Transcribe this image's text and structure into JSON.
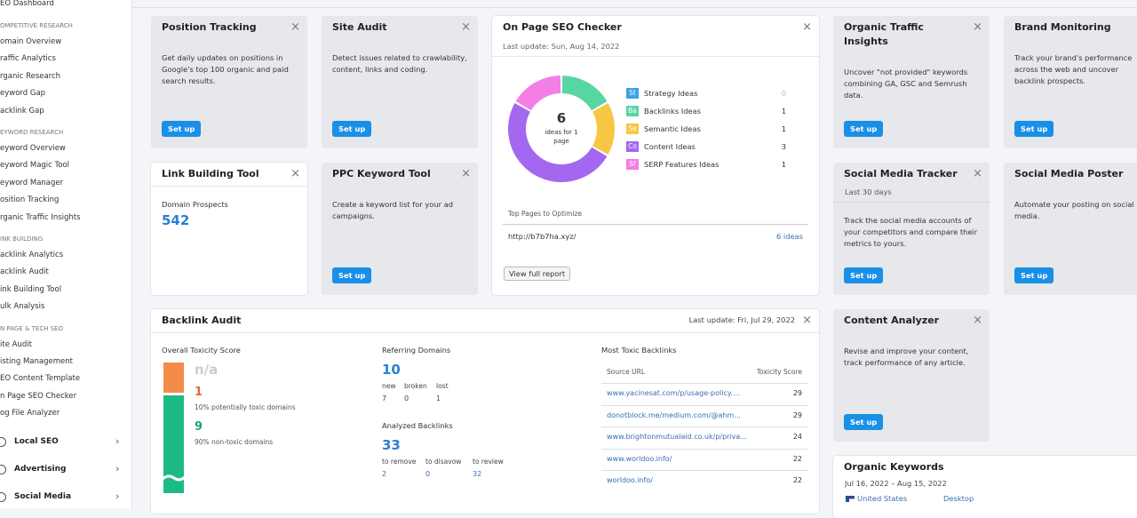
{
  "sidebar": {
    "top_item": "EO Dashboard",
    "sections": [
      {
        "heading": "OMPETITIVE RESEARCH",
        "items": [
          "omain Overview",
          "raffic Analytics",
          "rganic Research",
          "eyword Gap",
          "acklink Gap"
        ]
      },
      {
        "heading": "EYWORD RESEARCH",
        "items": [
          "eyword Overview",
          "eyword Magic Tool",
          "eyword Manager",
          "osition Tracking",
          "rganic Traffic Insights"
        ]
      },
      {
        "heading": "INK BUILDING",
        "items": [
          "acklink Analytics",
          "acklink Audit",
          "ink Building Tool",
          "ulk Analysis"
        ]
      },
      {
        "heading": "N PAGE & TECH SEO",
        "items": [
          "ite Audit",
          "isting Management",
          "EO Content Template",
          "n Page SEO Checker",
          "og File Analyzer"
        ]
      }
    ],
    "groups": [
      "Local SEO",
      "Advertising",
      "Social Media"
    ]
  },
  "position_tracking": {
    "title": "Position Tracking",
    "description": "Get daily updates on positions in Google's top 100 organic and paid search results.",
    "button": "Set up"
  },
  "site_audit": {
    "title": "Site Audit",
    "description": "Detect issues related to crawlability, content, links and coding.",
    "button": "Set up"
  },
  "on_page_seo_checker": {
    "title": "On Page SEO Checker",
    "last_update": "Last update: Sun, Aug 14, 2022",
    "total": 6,
    "total_label": "ideas for 1 page",
    "legend": [
      {
        "abbr": "St",
        "label": "Strategy Ideas",
        "value": 0,
        "color": "#3aa3e8"
      },
      {
        "abbr": "Ba",
        "label": "Backlinks Ideas",
        "value": 1,
        "color": "#57d6a1"
      },
      {
        "abbr": "Se",
        "label": "Semantic Ideas",
        "value": 1,
        "color": "#f7c744"
      },
      {
        "abbr": "Co",
        "label": "Content Ideas",
        "value": 3,
        "color": "#a367f0"
      },
      {
        "abbr": "Sf",
        "label": "SERP Features Ideas",
        "value": 1,
        "color": "#f27ee6"
      }
    ],
    "top_pages_heading": "Top Pages to Optimize",
    "page_url": "http://b7b7ha.xyz/",
    "page_ideas": "6 ideas",
    "button": "View full report"
  },
  "organic_traffic_insights": {
    "title": "Organic Traffic Insights",
    "description": "Uncover \"not provided\" keywords combining GA, GSC and Semrush data.",
    "button": "Set up"
  },
  "brand_monitoring": {
    "title": "Brand Monitoring",
    "description": "Track your brand's performance across the web and uncover backlink prospects.",
    "button": "Set up"
  },
  "link_building_tool": {
    "title": "Link Building Tool",
    "metric_label": "Domain Prospects",
    "metric_value": 542
  },
  "ppc_keyword_tool": {
    "title": "PPC Keyword Tool",
    "description": "Create a keyword list for your ad campaigns.",
    "button": "Set up"
  },
  "social_media_tracker": {
    "title": "Social Media Tracker",
    "subtitle": "Last 30 days",
    "description": "Track the social media accounts of your competitors and compare their metrics to yours.",
    "button": "Set up"
  },
  "social_media_poster": {
    "title": "Social Media Poster",
    "description": "Automate your posting on social media.",
    "button": "Set up"
  },
  "backlink_audit": {
    "title": "Backlink Audit",
    "last_update": "Last update: Fri, Jul 29, 2022",
    "toxicity": {
      "label": "Overall Toxicity Score",
      "score": "n/a",
      "toxic_count": 1,
      "toxic_label": "10% potentially toxic domains",
      "nontoxic_count": 9,
      "nontoxic_label": "90% non-toxic domains"
    },
    "referring_domains": {
      "label": "Referring Domains",
      "value": 10,
      "columns": [
        "new",
        "broken",
        "lost"
      ],
      "values": [
        7,
        0,
        1
      ]
    },
    "analyzed_backlinks": {
      "label": "Analyzed Backlinks",
      "value": 33,
      "columns": [
        "to remove",
        "to disavow",
        "to review"
      ],
      "values": [
        2,
        0,
        32
      ]
    },
    "toxic_backlinks": {
      "label": "Most Toxic Backlinks",
      "headers": [
        "Source URL",
        "Toxicity Score"
      ],
      "rows": [
        [
          "www.yacinesat.com/p/usage-policy....",
          29
        ],
        [
          "donotblock.me/medium.com/@ahm...",
          29
        ],
        [
          "www.brightonmutualaid.co.uk/p/priva...",
          24
        ],
        [
          "www.worldoo.info/",
          22
        ],
        [
          "worldoo.info/",
          22
        ]
      ]
    }
  },
  "content_analyzer": {
    "title": "Content Analyzer",
    "description": "Revise and improve your content, track performance of any article.",
    "button": "Set up"
  },
  "organic_keywords": {
    "title": "Organic Keywords",
    "date_range": "Jul 16, 2022 – Aug 15, 2022",
    "country": "United States",
    "device": "Desktop"
  }
}
